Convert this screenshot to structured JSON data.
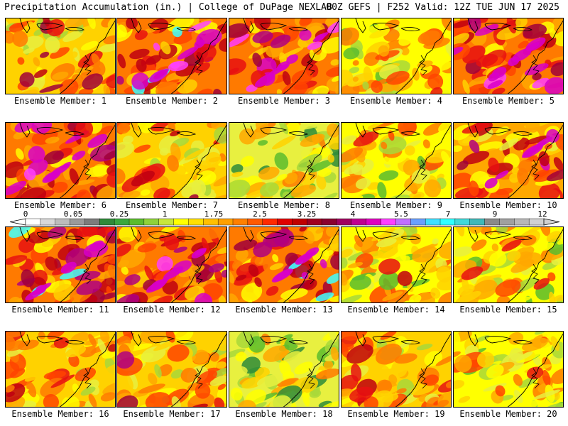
{
  "header": {
    "left": "Precipitation Accumulation (in.) | College of DuPage NEXLAB",
    "right": "00Z GEFS | F252 Valid: 12Z TUE JUN 17 2025"
  },
  "caption_prefix": "Ensemble Member: ",
  "members": [
    {
      "label": "Ensemble Member: 1",
      "wetness": 0.55
    },
    {
      "label": "Ensemble Member: 2",
      "wetness": 0.85
    },
    {
      "label": "Ensemble Member: 3",
      "wetness": 0.75
    },
    {
      "label": "Ensemble Member: 4",
      "wetness": 0.3
    },
    {
      "label": "Ensemble Member: 5",
      "wetness": 0.8
    },
    {
      "label": "Ensemble Member: 6",
      "wetness": 0.78
    },
    {
      "label": "Ensemble Member: 7",
      "wetness": 0.5
    },
    {
      "label": "Ensemble Member: 8",
      "wetness": 0.2
    },
    {
      "label": "Ensemble Member: 9",
      "wetness": 0.4
    },
    {
      "label": "Ensemble Member: 10",
      "wetness": 0.65
    },
    {
      "label": "Ensemble Member: 11",
      "wetness": 0.82
    },
    {
      "label": "Ensemble Member: 12",
      "wetness": 0.8
    },
    {
      "label": "Ensemble Member: 13",
      "wetness": 0.88
    },
    {
      "label": "Ensemble Member: 14",
      "wetness": 0.35
    },
    {
      "label": "Ensemble Member: 15",
      "wetness": 0.35
    },
    {
      "label": "Ensemble Member: 16",
      "wetness": 0.45
    },
    {
      "label": "Ensemble Member: 17",
      "wetness": 0.55
    },
    {
      "label": "Ensemble Member: 18",
      "wetness": 0.22
    },
    {
      "label": "Ensemble Member: 19",
      "wetness": 0.58
    },
    {
      "label": "Ensemble Member: 20",
      "wetness": 0.4
    }
  ],
  "colorbar": {
    "labels": [
      "0",
      "0.05",
      "0.25",
      "1",
      "1.75",
      "2.5",
      "3.25",
      "4",
      "5.5",
      "7",
      "9",
      "12"
    ],
    "colors": [
      "#ffffff",
      "#d8d8d8",
      "#bcbcbc",
      "#9a9a9a",
      "#7c7c7c",
      "#2f8a3a",
      "#3aa83e",
      "#5cbc2e",
      "#8fd23a",
      "#c8e63c",
      "#ffff00",
      "#ffe000",
      "#ffc000",
      "#ffa000",
      "#ff8000",
      "#ff5a00",
      "#ff2a00",
      "#e00000",
      "#c00000",
      "#a00020",
      "#8a0030",
      "#a00060",
      "#c00090",
      "#e000c0",
      "#ff40ff",
      "#c070ff",
      "#6aa0ff",
      "#40e0ff",
      "#30ffff",
      "#40d8d8",
      "#40b8b8",
      "#8a8a8a",
      "#a0a0a0",
      "#b8b8b8",
      "#d0d0d0"
    ]
  }
}
